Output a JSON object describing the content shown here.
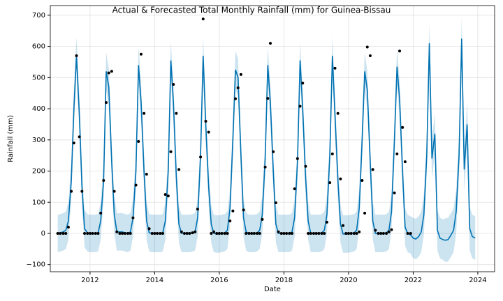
{
  "chart_data": {
    "type": "forecast",
    "title": "Actual & Forecasted Total Monthly Rainfall (mm) for Guinea-Bissau",
    "x_label": "Date",
    "y_label": "Rainfall (mm)",
    "xlim": [
      2010.77,
      2024.52
    ],
    "ylim": [
      -123,
      731
    ],
    "xticks": [
      2012,
      2014,
      2016,
      2018,
      2020,
      2022,
      2024
    ],
    "yticks": [
      {
        "value": -100,
        "label": "−100"
      },
      0,
      100,
      200,
      300,
      400,
      500,
      600,
      700
    ],
    "grid": true,
    "x": [
      2011,
      2011.08,
      2011.17,
      2011.25,
      2011.33,
      2011.42,
      2011.5,
      2011.58,
      2011.67,
      2011.75,
      2011.83,
      2011.92,
      2012,
      2012.08,
      2012.17,
      2012.25,
      2012.33,
      2012.42,
      2012.5,
      2012.58,
      2012.67,
      2012.75,
      2012.83,
      2012.92,
      2013,
      2013.08,
      2013.17,
      2013.25,
      2013.33,
      2013.42,
      2013.5,
      2013.58,
      2013.67,
      2013.75,
      2013.83,
      2013.92,
      2014,
      2014.08,
      2014.17,
      2014.25,
      2014.33,
      2014.42,
      2014.5,
      2014.58,
      2014.67,
      2014.75,
      2014.83,
      2014.92,
      2015,
      2015.08,
      2015.17,
      2015.25,
      2015.33,
      2015.42,
      2015.5,
      2015.58,
      2015.67,
      2015.75,
      2015.83,
      2015.92,
      2016,
      2016.08,
      2016.17,
      2016.25,
      2016.33,
      2016.42,
      2016.5,
      2016.58,
      2016.67,
      2016.75,
      2016.83,
      2016.92,
      2017,
      2017.08,
      2017.17,
      2017.25,
      2017.33,
      2017.42,
      2017.5,
      2017.58,
      2017.67,
      2017.75,
      2017.83,
      2017.92,
      2018,
      2018.08,
      2018.17,
      2018.25,
      2018.33,
      2018.42,
      2018.5,
      2018.58,
      2018.67,
      2018.75,
      2018.83,
      2018.92,
      2019,
      2019.08,
      2019.17,
      2019.25,
      2019.33,
      2019.42,
      2019.5,
      2019.58,
      2019.67,
      2019.75,
      2019.83,
      2019.92,
      2020,
      2020.08,
      2020.17,
      2020.25,
      2020.33,
      2020.42,
      2020.5,
      2020.58,
      2020.67,
      2020.75,
      2020.83,
      2020.92,
      2021,
      2021.08,
      2021.17,
      2021.25,
      2021.33,
      2021.42,
      2021.5,
      2021.58,
      2021.67,
      2021.75,
      2021.83,
      2021.92,
      2022,
      2022.08,
      2022.17,
      2022.25,
      2022.33,
      2022.42,
      2022.5,
      2022.58,
      2022.67,
      2022.75,
      2022.83,
      2022.92,
      2023,
      2023.08,
      2023.17,
      2023.25,
      2023.33,
      2023.42,
      2023.5,
      2023.58,
      2023.67,
      2023.75,
      2023.83,
      2023.92
    ],
    "series": [
      {
        "marker": "dot",
        "color": "#000000",
        "values": [
          0,
          0,
          0,
          0,
          20,
          135,
          290,
          570,
          310,
          135,
          0,
          0,
          0,
          0,
          0,
          0,
          65,
          170,
          420,
          515,
          520,
          135,
          5,
          0,
          0,
          0,
          0,
          0,
          50,
          155,
          295,
          575,
          385,
          190,
          15,
          0,
          0,
          0,
          0,
          0,
          125,
          120,
          262,
          478,
          385,
          205,
          5,
          0,
          0,
          0,
          2,
          5,
          78,
          245,
          688,
          360,
          325,
          0,
          5,
          0,
          0,
          0,
          0,
          0,
          40,
          72,
          432,
          467,
          510,
          75,
          0,
          0,
          0,
          0,
          0,
          0,
          45,
          213,
          433,
          610,
          262,
          98,
          5,
          0,
          0,
          0,
          0,
          0,
          143,
          240,
          408,
          482,
          215,
          0,
          0,
          0,
          0,
          0,
          0,
          0,
          36,
          163,
          255,
          530,
          385,
          175,
          25,
          0,
          0,
          0,
          0,
          0,
          5,
          170,
          65,
          598,
          570,
          205,
          10,
          0,
          0,
          0,
          0,
          5,
          12,
          130,
          255,
          585,
          340,
          230,
          0,
          0,
          null,
          null,
          null,
          null,
          null,
          null,
          null,
          null,
          null,
          null,
          null,
          null,
          null,
          null,
          null,
          null,
          null,
          null,
          null,
          null,
          null,
          null,
          null,
          null
        ]
      },
      {
        "marker": "line",
        "color": "#0072B2",
        "values": [
          0,
          2,
          5,
          10,
          40,
          170,
          400,
          570,
          380,
          150,
          15,
          2,
          0,
          0,
          0,
          2,
          40,
          170,
          520,
          470,
          230,
          60,
          5,
          5,
          5,
          2,
          0,
          5,
          50,
          200,
          540,
          420,
          200,
          40,
          2,
          0,
          0,
          0,
          0,
          2,
          40,
          200,
          555,
          420,
          180,
          30,
          0,
          0,
          0,
          0,
          2,
          5,
          50,
          250,
          570,
          350,
          150,
          30,
          0,
          -2,
          -2,
          0,
          2,
          10,
          80,
          300,
          525,
          500,
          250,
          50,
          5,
          0,
          0,
          0,
          2,
          10,
          60,
          240,
          540,
          420,
          200,
          30,
          0,
          0,
          0,
          0,
          0,
          5,
          50,
          230,
          555,
          400,
          180,
          40,
          0,
          0,
          0,
          0,
          2,
          10,
          60,
          250,
          570,
          380,
          170,
          30,
          -2,
          -2,
          -2,
          0,
          2,
          10,
          80,
          300,
          520,
          460,
          230,
          40,
          0,
          0,
          0,
          0,
          2,
          10,
          70,
          300,
          535,
          430,
          200,
          20,
          0,
          -5,
          -15,
          -18,
          -10,
          5,
          60,
          250,
          610,
          240,
          320,
          10,
          -15,
          -20,
          -22,
          -20,
          -5,
          10,
          70,
          250,
          625,
          205,
          350,
          15,
          -10,
          -15
        ]
      }
    ],
    "band": {
      "color": "#0072B2",
      "errors": [
        60,
        60,
        60,
        60,
        60,
        60,
        60,
        60,
        60,
        60,
        60,
        60,
        60,
        60,
        60,
        60,
        60,
        60,
        60,
        60,
        60,
        60,
        60,
        60,
        60,
        60,
        60,
        60,
        60,
        60,
        60,
        60,
        60,
        60,
        60,
        60,
        60,
        60,
        60,
        60,
        60,
        60,
        60,
        60,
        60,
        60,
        60,
        60,
        60,
        60,
        60,
        60,
        60,
        60,
        60,
        60,
        60,
        60,
        60,
        60,
        60,
        60,
        60,
        60,
        60,
        60,
        60,
        60,
        60,
        60,
        60,
        60,
        60,
        60,
        60,
        60,
        60,
        60,
        60,
        60,
        60,
        60,
        60,
        60,
        60,
        60,
        60,
        60,
        60,
        60,
        60,
        60,
        60,
        60,
        60,
        60,
        60,
        60,
        60,
        60,
        60,
        60,
        60,
        60,
        60,
        60,
        60,
        60,
        60,
        60,
        60,
        60,
        60,
        60,
        60,
        60,
        60,
        60,
        60,
        60,
        60,
        60,
        60,
        60,
        60,
        60,
        60,
        60,
        60,
        60,
        60,
        60,
        65,
        65,
        65,
        65,
        65,
        65,
        65,
        65,
        65,
        65,
        65,
        65,
        70,
        70,
        70,
        70,
        70,
        70,
        70,
        70,
        70,
        70,
        70,
        70
      ]
    }
  }
}
